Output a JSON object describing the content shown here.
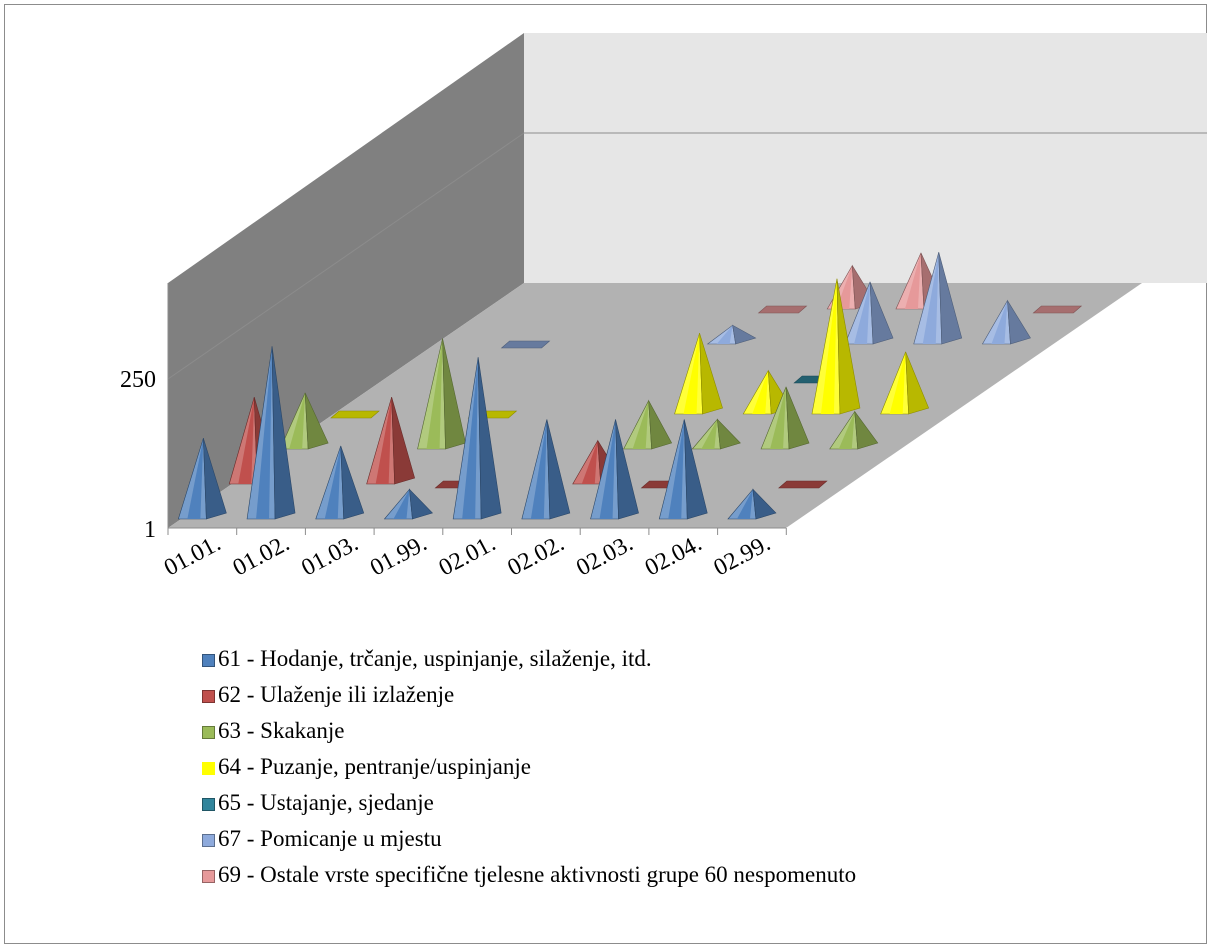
{
  "chart_data": {
    "type": "3d-cone",
    "categories": [
      "01.01.",
      "01.02.",
      "01.03.",
      "01.99.",
      "02.01.",
      "02.02.",
      "02.03.",
      "02.04.",
      "02.99."
    ],
    "y_ticks": [
      "250",
      "1"
    ],
    "ylim": [
      1,
      1000
    ],
    "y_scale": "log",
    "legend_position": "bottom",
    "series": [
      {
        "name": "61 - Hodanje, trčanje, uspinjanje, silaženje, itd.",
        "color": "#4f81bd",
        "values": [
          20,
          600,
          15,
          3,
          400,
          40,
          40,
          40,
          3
        ]
      },
      {
        "name": "62 - Ulaženje ili izlaženje",
        "color": "#c0504d",
        "values": [
          25,
          0,
          25,
          1,
          0,
          5,
          1,
          0,
          1
        ]
      },
      {
        "name": "63 - Skakanje",
        "color": "#9bbb59",
        "values": [
          8,
          0,
          60,
          0,
          0,
          6,
          3,
          10,
          4
        ]
      },
      {
        "name": "64 - Puzanje, pentranje/uspinjanje",
        "color": "#ffff00",
        "values": [
          1,
          0,
          1,
          0,
          0,
          20,
          5,
          150,
          10
        ]
      },
      {
        "name": "65 - Ustajanje, sjedanje",
        "color": "#31859c",
        "values": [
          0,
          0,
          0,
          0,
          0,
          0,
          1,
          0,
          0
        ]
      },
      {
        "name": "67 - Pomicanje u mjestu",
        "color": "#8eaadc",
        "values": [
          0,
          1,
          0,
          0,
          2,
          0,
          10,
          30,
          5
        ]
      },
      {
        "name": "69 - Ostale vrste specifične tjelesne aktivnosti grupe 60 nespomenuto",
        "color": "#e6999a",
        "values": [
          0,
          0,
          0,
          0,
          1,
          5,
          8,
          0,
          1
        ]
      }
    ]
  }
}
